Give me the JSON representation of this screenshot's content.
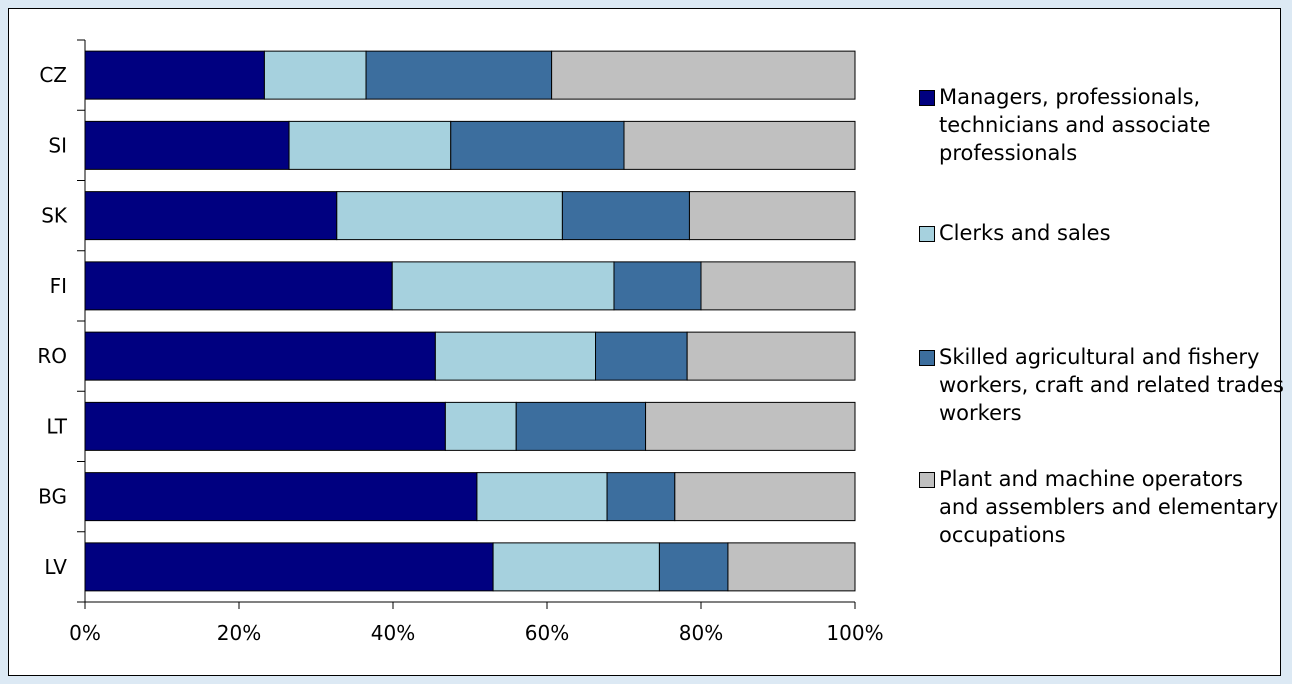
{
  "chart_data": {
    "type": "bar",
    "orientation": "horizontal",
    "stacked": "percent",
    "categories": [
      "CZ",
      "SI",
      "SK",
      "FI",
      "RO",
      "LT",
      "BG",
      "LV"
    ],
    "series": [
      {
        "name": "Managers, professionals, technicians and associate professionals",
        "color": "#000080",
        "values": [
          23.3,
          26.5,
          32.7,
          39.9,
          45.5,
          46.8,
          50.9,
          53.0
        ]
      },
      {
        "name": "Clerks and sales",
        "color": "#a6d1de",
        "values": [
          13.2,
          21.0,
          29.3,
          28.8,
          20.8,
          9.2,
          16.9,
          21.6
        ]
      },
      {
        "name": "Skilled agricultural and fishery workers, craft and related trades workers",
        "color": "#3c6e9e",
        "values": [
          24.1,
          22.5,
          16.5,
          11.3,
          11.9,
          16.8,
          8.8,
          8.9
        ]
      },
      {
        "name": "Plant and machine operators and assemblers and elementary occupations",
        "color": "#c0c0c0",
        "values": [
          39.4,
          30.0,
          21.5,
          20.0,
          21.8,
          27.2,
          23.4,
          16.5
        ]
      }
    ],
    "x_ticks": [
      "0%",
      "20%",
      "40%",
      "60%",
      "80%",
      "100%"
    ],
    "xlim": [
      0,
      100
    ],
    "legend_position": "right",
    "grid": false
  }
}
